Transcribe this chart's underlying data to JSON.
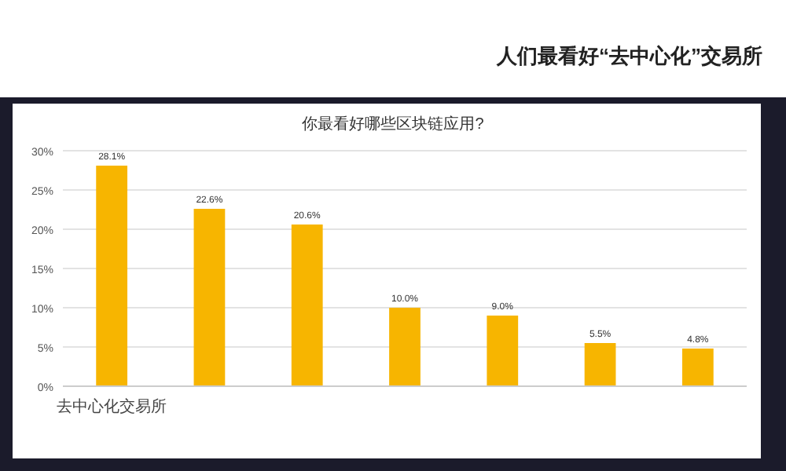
{
  "chart_data": {
    "type": "bar",
    "title": "你最看好哪些区块链应用?",
    "annotations": [
      "人们最看好“去中心化”交易所"
    ],
    "categories": [
      "去中心化交易所",
      null,
      null,
      null,
      null,
      null,
      null
    ],
    "values": [
      28.1,
      22.6,
      20.6,
      10.0,
      9.0,
      5.5,
      4.8
    ],
    "value_labels": [
      "28.1%",
      "22.6%",
      "20.6%",
      "10.0%",
      "9.0%",
      "5.5%",
      "4.8%"
    ],
    "color": "#f7b500",
    "ylim": [
      0,
      30
    ],
    "yticks": [
      {
        "value": 0,
        "label": "0%"
      },
      {
        "value": 5,
        "label": "5%"
      },
      {
        "value": 10,
        "label": "10%"
      },
      {
        "value": 15,
        "label": "15%"
      },
      {
        "value": 20,
        "label": "20%"
      },
      {
        "value": 25,
        "label": "25%"
      },
      {
        "value": 30,
        "label": "30%"
      }
    ],
    "grid": "y"
  }
}
